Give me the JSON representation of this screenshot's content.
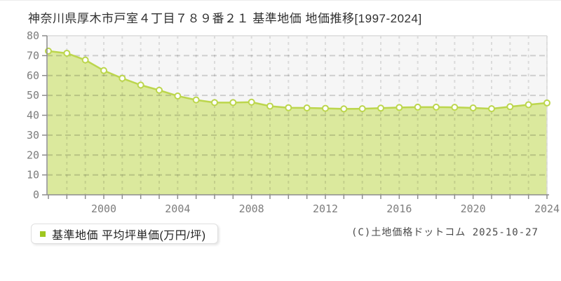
{
  "page": {
    "title": "神奈川県厚木市戸室４丁目７８９番２１ 基準地価 地価推移[1997-2024]",
    "copyright": "(C)土地価格ドットコム 2025-10-27"
  },
  "legend": {
    "label": "基準地価 平均坪単価(万円/坪)",
    "marker_color": "#9fc71f"
  },
  "chart_data": {
    "type": "area",
    "title": "神奈川県厚木市戸室４丁目７８９番２１ 基準地価 地価推移[1997-2024]",
    "xlabel": "",
    "ylabel": "万円/坪",
    "x": [
      1997,
      1998,
      1999,
      2000,
      2001,
      2002,
      2003,
      2004,
      2005,
      2006,
      2007,
      2008,
      2009,
      2010,
      2011,
      2012,
      2013,
      2014,
      2015,
      2016,
      2017,
      2018,
      2019,
      2020,
      2021,
      2022,
      2023,
      2024
    ],
    "series": [
      {
        "name": "基準地価 平均坪単価(万円/坪)",
        "values": [
          72.3,
          71.2,
          67.8,
          62.5,
          58.6,
          55.2,
          52.6,
          49.7,
          47.7,
          46.4,
          46.4,
          46.6,
          44.6,
          43.8,
          43.7,
          43.5,
          43.2,
          43.3,
          43.6,
          43.9,
          44.1,
          44.1,
          44.0,
          43.7,
          43.3,
          44.3,
          45.3,
          46.2
        ]
      }
    ],
    "ylim": [
      0,
      80
    ],
    "ytick_step": 10,
    "ytick_labels": [
      "0",
      "10",
      "20",
      "30",
      "40",
      "50",
      "60",
      "70",
      "80"
    ],
    "xtick_labeled_years": [
      2000,
      2004,
      2008,
      2012,
      2016,
      2020,
      2024
    ],
    "grid": true,
    "legend_position": "bottom-left",
    "colors": {
      "line": "#bcd64d",
      "fill": "#dbe99d",
      "marker_fill": "#ffffff",
      "marker_stroke": "#bcd64d",
      "plot_bg": "#f6f6f6",
      "plot_border": "#dcdcdc",
      "axis": "#8c8c8c",
      "tick_label": "#7d7d7d"
    }
  }
}
